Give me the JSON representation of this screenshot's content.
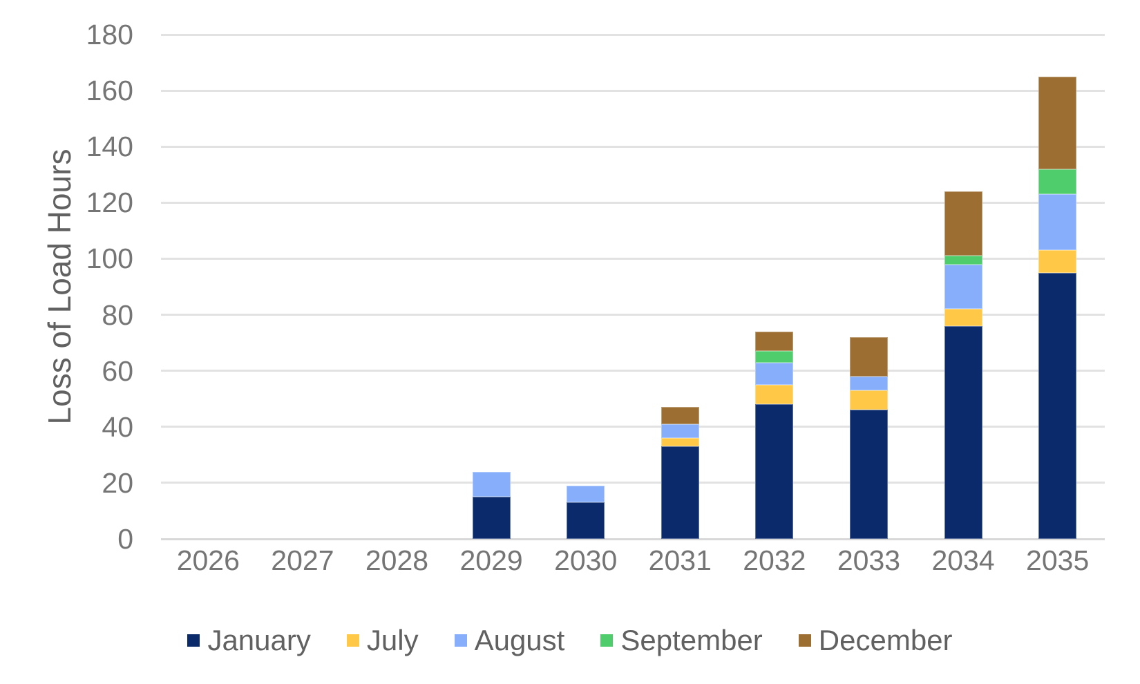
{
  "chart_data": {
    "type": "bar",
    "stacked": true,
    "title": "",
    "xlabel": "",
    "ylabel": "Loss of Load Hours",
    "ylim": [
      0,
      180
    ],
    "yticks": [
      0,
      20,
      40,
      60,
      80,
      100,
      120,
      140,
      160,
      180
    ],
    "grid": true,
    "legend_position": "bottom",
    "categories": [
      "2026",
      "2027",
      "2028",
      "2029",
      "2030",
      "2031",
      "2032",
      "2033",
      "2034",
      "2035"
    ],
    "series": [
      {
        "name": "January",
        "color": "#0a2a6b",
        "values": [
          0,
          0,
          0,
          15,
          13,
          33,
          48,
          46,
          76,
          95
        ]
      },
      {
        "name": "July",
        "color": "#ffc847",
        "values": [
          0,
          0,
          0,
          0,
          0,
          3,
          7,
          7,
          6,
          8
        ]
      },
      {
        "name": "August",
        "color": "#86aefb",
        "values": [
          0,
          0,
          0,
          9,
          6,
          5,
          8,
          5,
          16,
          20
        ]
      },
      {
        "name": "September",
        "color": "#4fcc6c",
        "values": [
          0,
          0,
          0,
          0,
          0,
          0,
          4,
          0,
          3,
          9
        ]
      },
      {
        "name": "December",
        "color": "#9c6e31",
        "values": [
          0,
          0,
          0,
          0,
          0,
          6,
          7,
          14,
          23,
          33
        ]
      }
    ],
    "totals_by_year": [
      0,
      0,
      0,
      24,
      19,
      47,
      74,
      72,
      124,
      165
    ]
  },
  "style_colors": {
    "gridline": "#e2e2e2",
    "baseline": "#d8d8d8",
    "tick_text": "#757575",
    "axis_title_text": "#616161",
    "legend_text": "#616161",
    "background": "#ffffff"
  }
}
